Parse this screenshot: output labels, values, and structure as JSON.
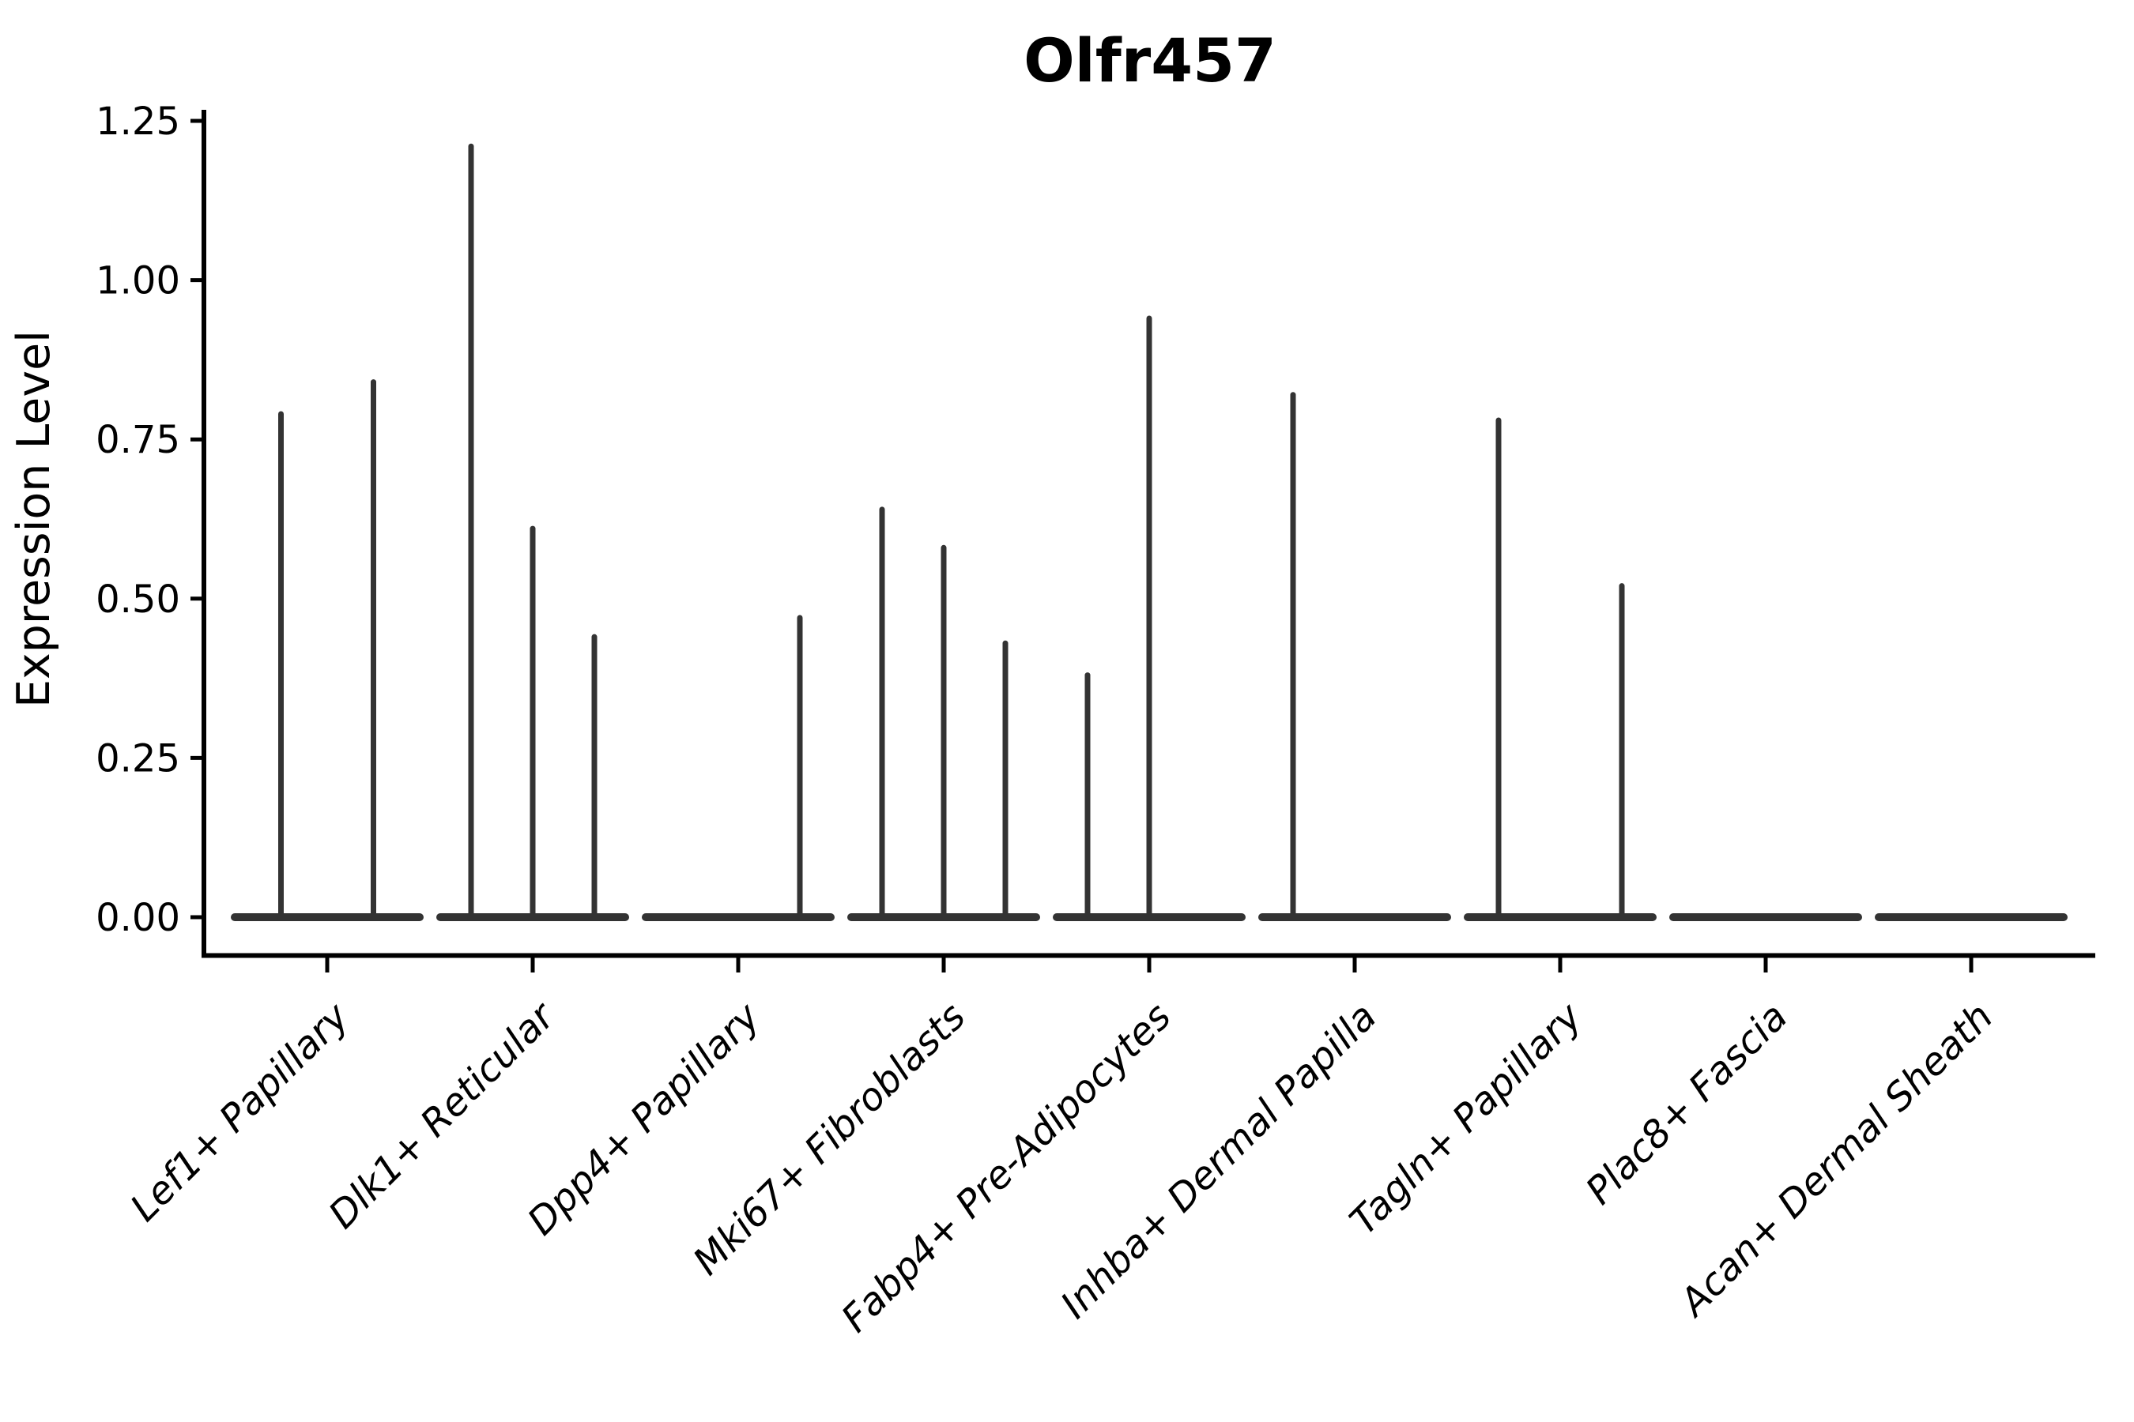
{
  "chart_data": {
    "type": "violin",
    "title": "Olfr457",
    "xlabel": "",
    "ylabel": "Expression Level",
    "categories": [
      "Lef1+ Papillary",
      "Dlk1+ Reticular",
      "Dpp4+ Papillary",
      "Mki67+ Fibroblasts",
      "Fabp4+ Pre-Adipocytes",
      "Inhba+ Dermal Papilla",
      "Tagln+ Papillary",
      "Plac8+ Fascia",
      "Acan+ Dermal Sheath"
    ],
    "y_ticks": [
      "0.00",
      "0.25",
      "0.50",
      "0.75",
      "1.00",
      "1.25"
    ],
    "y_tick_values": [
      0.0,
      0.25,
      0.5,
      0.75,
      1.0,
      1.25
    ],
    "ylim": [
      -0.06,
      1.27
    ],
    "grid": false,
    "legend_position": "none",
    "baseline_value": 0.0,
    "violins": [
      {
        "category": "Lef1+ Papillary",
        "baseline": 0.0,
        "spikes": [
          {
            "offset": -0.225,
            "max": 0.79
          },
          {
            "offset": 0.225,
            "max": 0.84
          }
        ]
      },
      {
        "category": "Dlk1+ Reticular",
        "baseline": 0.0,
        "spikes": [
          {
            "offset": -0.3,
            "max": 1.21
          },
          {
            "offset": 0.0,
            "max": 0.61
          },
          {
            "offset": 0.3,
            "max": 0.44
          }
        ]
      },
      {
        "category": "Dpp4+ Papillary",
        "baseline": 0.0,
        "spikes": [
          {
            "offset": 0.3,
            "max": 0.47
          }
        ]
      },
      {
        "category": "Mki67+ Fibroblasts",
        "baseline": 0.0,
        "spikes": [
          {
            "offset": -0.3,
            "max": 0.64
          },
          {
            "offset": 0.0,
            "max": 0.58
          },
          {
            "offset": 0.3,
            "max": 0.43
          }
        ]
      },
      {
        "category": "Fabp4+ Pre-Adipocytes",
        "baseline": 0.0,
        "spikes": [
          {
            "offset": -0.3,
            "max": 0.38
          },
          {
            "offset": 0.0,
            "max": 0.94
          }
        ]
      },
      {
        "category": "Inhba+ Dermal Papilla",
        "baseline": 0.0,
        "spikes": [
          {
            "offset": -0.3,
            "max": 0.82
          }
        ]
      },
      {
        "category": "Tagln+ Papillary",
        "baseline": 0.0,
        "spikes": [
          {
            "offset": -0.3,
            "max": 0.78
          },
          {
            "offset": 0.3,
            "max": 0.52
          }
        ]
      },
      {
        "category": "Plac8+ Fascia",
        "baseline": 0.0,
        "spikes": []
      },
      {
        "category": "Acan+ Dermal Sheath",
        "baseline": 0.0,
        "spikes": []
      }
    ],
    "colors": {
      "violin": "#333333",
      "axis": "#000000",
      "text": "#000000",
      "background": "#ffffff"
    }
  }
}
